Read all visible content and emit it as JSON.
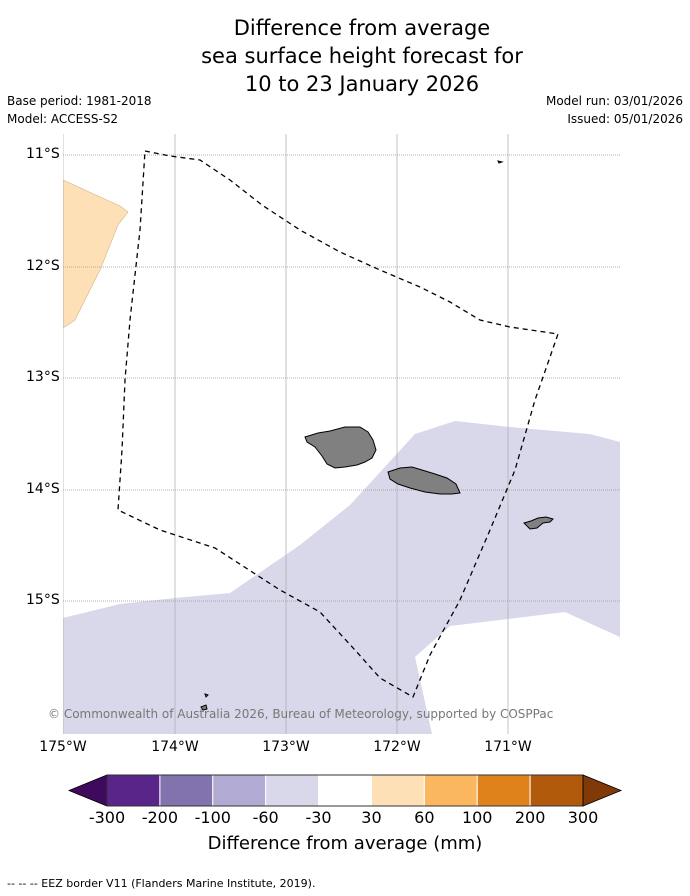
{
  "title": {
    "line1": "Difference from average",
    "line2": "sea surface height forecast for",
    "line3": "10 to 23 January 2026"
  },
  "meta": {
    "base_period": "Base period: 1981-2018",
    "model": "Model: ACCESS-S2",
    "model_run": "Model run: 03/01/2026",
    "issued": "Issued: 05/01/2026"
  },
  "map": {
    "lat_labels": [
      "11°S",
      "12°S",
      "13°S",
      "14°S",
      "15°S"
    ],
    "lon_labels": [
      "175°W",
      "174°W",
      "173°W",
      "172°W",
      "171°W"
    ],
    "copyright": "© Commonwealth of Australia 2026, Bureau of Meteorology, supported by COSPPac",
    "colors": {
      "ocean_light_purple": "#d8d8ea",
      "light_orange": "#fde0b5",
      "land": "#808080",
      "grid": "#999999"
    }
  },
  "colorbar": {
    "ticks": [
      "-300",
      "-200",
      "-100",
      "-60",
      "-30",
      "30",
      "60",
      "100",
      "200",
      "300"
    ],
    "colors": [
      "#3f0a5e",
      "#5a2589",
      "#8272ae",
      "#b1aad2",
      "#d8d8ea",
      "#ffffff",
      "#fde0b5",
      "#fbb75f",
      "#e0821b",
      "#b25a0c",
      "#7f3a08"
    ],
    "label": "Difference from average (mm)"
  },
  "footnote": "--  --  -- EEZ border V11 (Flanders Marine Institute, 2019)."
}
